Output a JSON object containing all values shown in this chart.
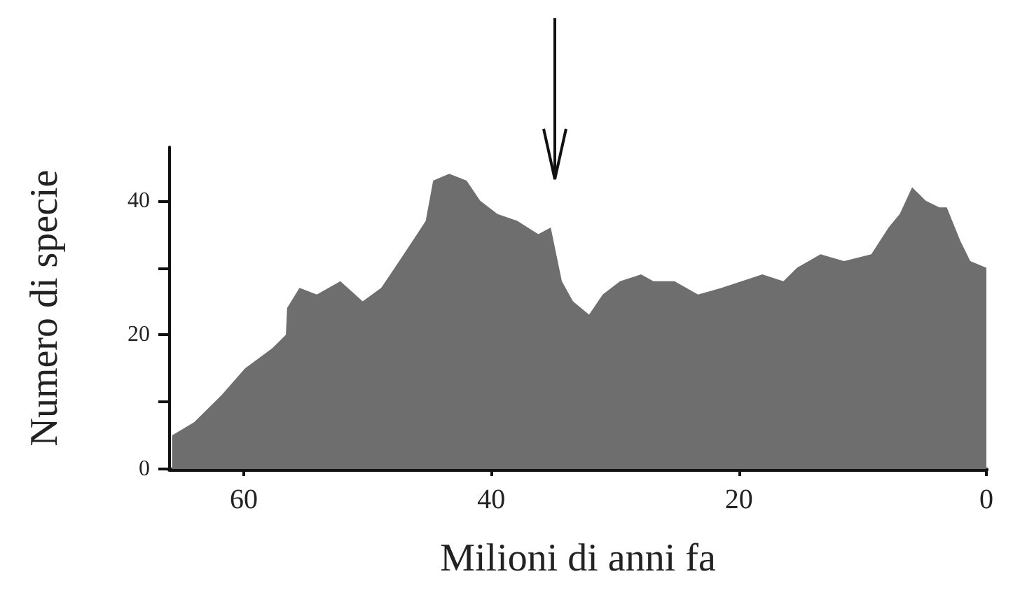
{
  "chart_data": {
    "type": "area",
    "xlabel": "Milioni di anni fa",
    "ylabel": "Numero di specie",
    "x": [
      65.8,
      64,
      61.8,
      59.9,
      57.7,
      56.6,
      56.5,
      55.5,
      54.1,
      52.2,
      50.4,
      48.9,
      47.8,
      46,
      45.3,
      44.7,
      43.4,
      42,
      40.9,
      39.5,
      37.9,
      36.2,
      35.2,
      34.3,
      33.4,
      32.1,
      31,
      29.6,
      27.9,
      26.9,
      25.2,
      23.3,
      21.4,
      18.1,
      16.4,
      15.3,
      13.4,
      11.5,
      9.3,
      7.9,
      7,
      6,
      4.9,
      3.8,
      3.2,
      2.1,
      1.3,
      0
    ],
    "values": [
      5,
      7,
      11,
      15,
      18,
      20,
      24,
      27,
      26,
      28,
      25,
      27,
      30,
      35,
      37,
      43,
      44,
      43,
      40,
      38,
      37,
      35,
      36,
      28,
      25,
      23,
      26,
      28,
      29,
      28,
      28,
      26,
      27,
      29,
      28,
      30,
      32,
      31,
      32,
      36,
      38,
      42,
      40,
      39,
      39,
      34,
      31,
      30
    ],
    "color": "#6e6e6e",
    "xlim": [
      66,
      0
    ],
    "xticks": [
      60,
      40,
      20,
      0
    ],
    "ylim": [
      0,
      48
    ],
    "yticks": [
      0,
      {
        "value": 10,
        "label": null
      },
      20,
      {
        "value": 30,
        "label": null
      },
      40
    ],
    "grid": false
  }
}
